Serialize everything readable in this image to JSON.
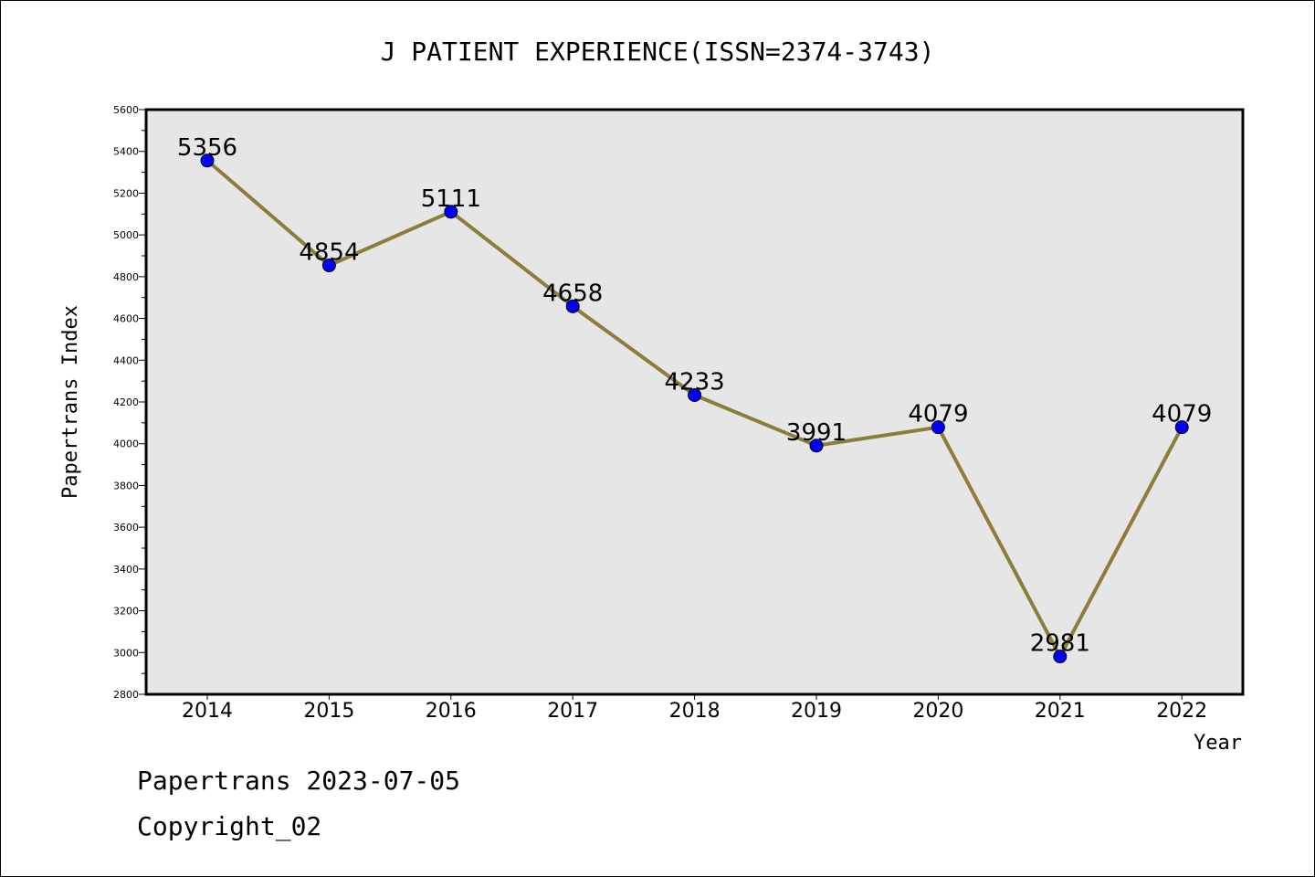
{
  "chart_data": {
    "type": "line",
    "title": "J PATIENT EXPERIENCE(ISSN=2374-3743)",
    "xlabel": "Year",
    "ylabel": "Papertrans Index",
    "categories": [
      "2014",
      "2015",
      "2016",
      "2017",
      "2018",
      "2019",
      "2020",
      "2021",
      "2022"
    ],
    "values": [
      5356,
      4854,
      5111,
      4658,
      4233,
      3991,
      4079,
      2981,
      4079
    ],
    "data_labels": [
      "5356",
      "4854",
      "5111",
      "4658",
      "4233",
      "3991",
      "4079",
      "2981",
      "4079"
    ],
    "ylim": [
      2800,
      5600
    ],
    "yticks": [
      "2800",
      "3000",
      "3200",
      "3400",
      "3600",
      "3800",
      "4000",
      "4200",
      "4400",
      "4600",
      "4800",
      "5000",
      "5200",
      "5400",
      "5600"
    ],
    "grid": false,
    "colors": {
      "plot_background": "#e6e6e6",
      "line": "#8c7d3a",
      "marker": "#0000ff"
    }
  },
  "footer": {
    "line1": "Papertrans 2023-07-05",
    "line2": "Copyright_02"
  }
}
